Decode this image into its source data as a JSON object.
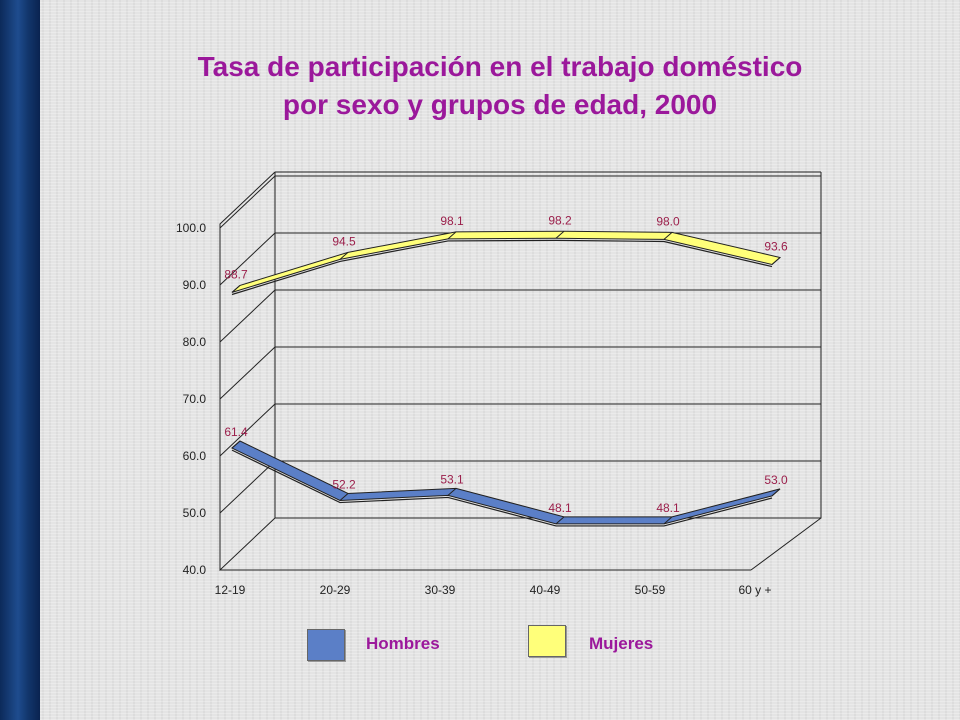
{
  "title_line1": "Tasa de participación en el trabajo doméstico",
  "title_line2": "por sexo y grupos de edad, 2000",
  "chart_data": {
    "type": "line",
    "title": "Tasa de participación en el trabajo doméstico por sexo y grupos de edad, 2000",
    "categories": [
      "12-19",
      "20-29",
      "30-39",
      "40-49",
      "50-59",
      "60 y +"
    ],
    "yticks": [
      "40.0",
      "50.0",
      "60.0",
      "70.0",
      "80.0",
      "90.0",
      "100.0"
    ],
    "ylim": [
      40,
      100
    ],
    "grid": true,
    "legend_position": "bottom",
    "series": [
      {
        "name": "Hombres",
        "values": [
          61.4,
          52.2,
          53.1,
          48.1,
          48.1,
          53.0
        ],
        "labels": [
          "61.4",
          "52.2",
          "53.1",
          "48.1",
          "48.1",
          "53.0"
        ],
        "color": "#5b7fc7"
      },
      {
        "name": "Mujeres",
        "values": [
          88.7,
          94.5,
          98.1,
          98.2,
          98.0,
          93.6
        ],
        "labels": [
          "88.7",
          "94.5",
          "98.1",
          "98.2",
          "98.0",
          "93.6"
        ],
        "color": "#ffff7a"
      }
    ]
  },
  "colors": {
    "title": "#9b189b",
    "data_label": "#9b1f4b",
    "band": "#1a4280"
  }
}
